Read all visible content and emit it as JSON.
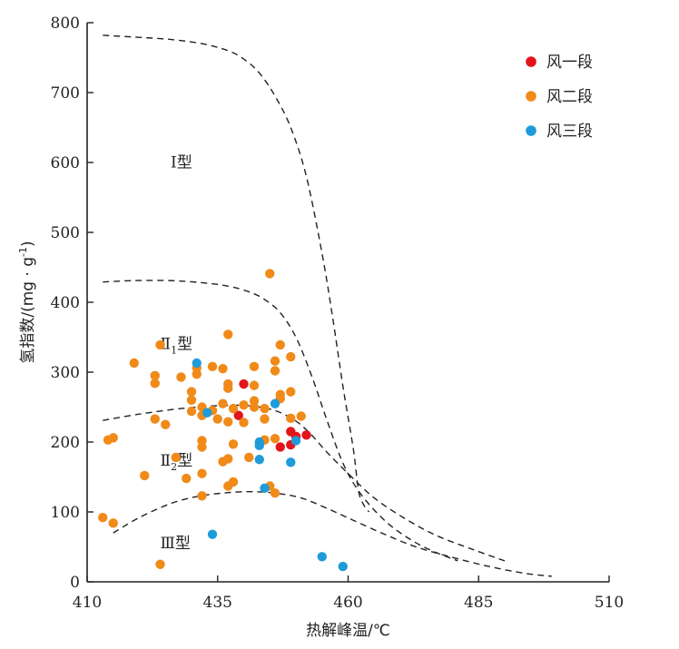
{
  "chart_data": {
    "type": "scatter",
    "xlabel": "热解峰温/℃",
    "ylabel": "氢指数/(mg · g",
    "ylabel_sup": "-1",
    "ylabel_close": ")",
    "xlim": [
      410,
      510
    ],
    "ylim": [
      0,
      800
    ],
    "xticks": [
      410,
      435,
      460,
      485,
      510
    ],
    "yticks": [
      0,
      100,
      200,
      300,
      400,
      500,
      600,
      700,
      800
    ],
    "grid": false,
    "legend_position": "top-right",
    "series": [
      {
        "name": "风一段",
        "color": "#e3141b",
        "points": [
          [
            440,
            283
          ],
          [
            439,
            238
          ],
          [
            447,
            193
          ],
          [
            449,
            196
          ],
          [
            449,
            215
          ],
          [
            450,
            208
          ],
          [
            452,
            210
          ]
        ]
      },
      {
        "name": "风二段",
        "color": "#f08a19",
        "points": [
          [
            445,
            441
          ],
          [
            437,
            354
          ],
          [
            424,
            339
          ],
          [
            447,
            339
          ],
          [
            449,
            322
          ],
          [
            419,
            313
          ],
          [
            446,
            316
          ],
          [
            431,
            306
          ],
          [
            434,
            308
          ],
          [
            436,
            305
          ],
          [
            442,
            308
          ],
          [
            423,
            295
          ],
          [
            428,
            293
          ],
          [
            431,
            297
          ],
          [
            446,
            302
          ],
          [
            437,
            283
          ],
          [
            442,
            281
          ],
          [
            423,
            284
          ],
          [
            430,
            272
          ],
          [
            437,
            277
          ],
          [
            447,
            268
          ],
          [
            449,
            272
          ],
          [
            430,
            260
          ],
          [
            436,
            255
          ],
          [
            440,
            253
          ],
          [
            442,
            259
          ],
          [
            447,
            262
          ],
          [
            432,
            250
          ],
          [
            438,
            248
          ],
          [
            442,
            250
          ],
          [
            430,
            244
          ],
          [
            434,
            245
          ],
          [
            444,
            248
          ],
          [
            423,
            233
          ],
          [
            425,
            225
          ],
          [
            432,
            238
          ],
          [
            435,
            233
          ],
          [
            437,
            229
          ],
          [
            440,
            228
          ],
          [
            444,
            233
          ],
          [
            449,
            234
          ],
          [
            451,
            237
          ],
          [
            414,
            203
          ],
          [
            415,
            206
          ],
          [
            432,
            202
          ],
          [
            432,
            193
          ],
          [
            438,
            197
          ],
          [
            444,
            203
          ],
          [
            446,
            205
          ],
          [
            427,
            178
          ],
          [
            436,
            172
          ],
          [
            437,
            176
          ],
          [
            441,
            178
          ],
          [
            421,
            152
          ],
          [
            429,
            148
          ],
          [
            432,
            155
          ],
          [
            438,
            143
          ],
          [
            437,
            137
          ],
          [
            445,
            137
          ],
          [
            446,
            127
          ],
          [
            432,
            123
          ],
          [
            413,
            92
          ],
          [
            415,
            84
          ],
          [
            424,
            25
          ]
        ]
      },
      {
        "name": "风三段",
        "color": "#1f9bd9",
        "points": [
          [
            431,
            313
          ],
          [
            433,
            242
          ],
          [
            443,
            200
          ],
          [
            443,
            195
          ],
          [
            446,
            255
          ],
          [
            450,
            202
          ],
          [
            443,
            175
          ],
          [
            449,
            171
          ],
          [
            444,
            134
          ],
          [
            434,
            68
          ],
          [
            455,
            36
          ],
          [
            459,
            22
          ]
        ]
      }
    ],
    "boundary_curves": [
      {
        "label": "I-II1 boundary",
        "points": [
          [
            413,
            782
          ],
          [
            420,
            779
          ],
          [
            426,
            776
          ],
          [
            432,
            770
          ],
          [
            437,
            760
          ],
          [
            440,
            748
          ],
          [
            443,
            728
          ],
          [
            446,
            695
          ],
          [
            449,
            650
          ],
          [
            452,
            580
          ],
          [
            455,
            470
          ],
          [
            457,
            380
          ],
          [
            459,
            280
          ],
          [
            461,
            190
          ],
          [
            462,
            130
          ],
          [
            463,
            110
          ],
          [
            464,
            100
          ]
        ]
      },
      {
        "label": "II1-II2 boundary",
        "points": [
          [
            413,
            429
          ],
          [
            419,
            431
          ],
          [
            426,
            431
          ],
          [
            432,
            428
          ],
          [
            437,
            423
          ],
          [
            441,
            415
          ],
          [
            444,
            404
          ],
          [
            447,
            385
          ],
          [
            450,
            350
          ],
          [
            453,
            295
          ],
          [
            456,
            230
          ],
          [
            459,
            170
          ],
          [
            462,
            130
          ],
          [
            466,
            95
          ],
          [
            470,
            70
          ],
          [
            475,
            48
          ],
          [
            481,
            30
          ]
        ]
      },
      {
        "label": "II2-III boundary",
        "points": [
          [
            413,
            231
          ],
          [
            420,
            240
          ],
          [
            428,
            248
          ],
          [
            435,
            252
          ],
          [
            441,
            252
          ],
          [
            446,
            245
          ],
          [
            450,
            230
          ],
          [
            453,
            210
          ],
          [
            456,
            185
          ],
          [
            460,
            155
          ],
          [
            465,
            120
          ],
          [
            471,
            90
          ],
          [
            477,
            66
          ],
          [
            484,
            46
          ],
          [
            490,
            30
          ]
        ]
      },
      {
        "label": "III lower boundary",
        "points": [
          [
            415,
            70
          ],
          [
            420,
            92
          ],
          [
            426,
            112
          ],
          [
            431,
            122
          ],
          [
            436,
            127
          ],
          [
            441,
            129
          ],
          [
            446,
            127
          ],
          [
            451,
            120
          ],
          [
            456,
            105
          ],
          [
            461,
            88
          ],
          [
            467,
            68
          ],
          [
            473,
            50
          ],
          [
            480,
            35
          ],
          [
            487,
            22
          ],
          [
            494,
            12
          ],
          [
            499,
            8
          ]
        ]
      }
    ],
    "region_labels": [
      {
        "main": "Ⅰ型",
        "sub": "",
        "x": 426,
        "y": 593
      },
      {
        "main": "Ⅱ",
        "sub": "1",
        "tail": "型",
        "x": 424,
        "y": 333
      },
      {
        "main": "Ⅱ",
        "sub": "2",
        "tail": "型",
        "x": 424,
        "y": 166
      },
      {
        "main": "Ⅲ型",
        "sub": "",
        "x": 424,
        "y": 48
      }
    ]
  }
}
